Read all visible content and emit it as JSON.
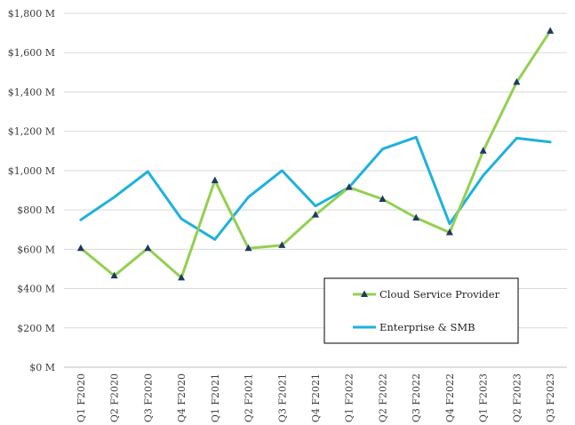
{
  "chart_data": {
    "type": "line",
    "categories": [
      "Q1 F2020",
      "Q2 F2020",
      "Q3 F2020",
      "Q4 F2020",
      "Q1 F2021",
      "Q2 F2021",
      "Q3 F2021",
      "Q4 F2021",
      "Q1 F2022",
      "Q2 F2022",
      "Q3 F2022",
      "Q4 F2022",
      "Q1 F2023",
      "Q2 F2023",
      "Q3 F2023"
    ],
    "series": [
      {
        "name": "Cloud Service Provider",
        "color": "#92d050",
        "marker": "triangle",
        "marker_color": "#1f3864",
        "values": [
          605,
          465,
          605,
          455,
          950,
          605,
          620,
          775,
          915,
          855,
          760,
          685,
          1100,
          1450,
          1710
        ]
      },
      {
        "name": "Enterprise & SMB",
        "color": "#1fb1db",
        "marker": "none",
        "values": [
          750,
          865,
          995,
          755,
          650,
          865,
          1000,
          820,
          915,
          1110,
          1170,
          730,
          975,
          1165,
          1145
        ]
      }
    ],
    "y_ticks": [
      "$0 M",
      "$200 M",
      "$400 M",
      "$600 M",
      "$800 M",
      "$1,000 M",
      "$1,200 M",
      "$1,400 M",
      "$1,600 M",
      "$1,800 M"
    ],
    "ylim": [
      0,
      1800
    ],
    "grid": "horizontal",
    "legend_position": "bottom-right",
    "title": "",
    "xlabel": "",
    "ylabel": ""
  }
}
